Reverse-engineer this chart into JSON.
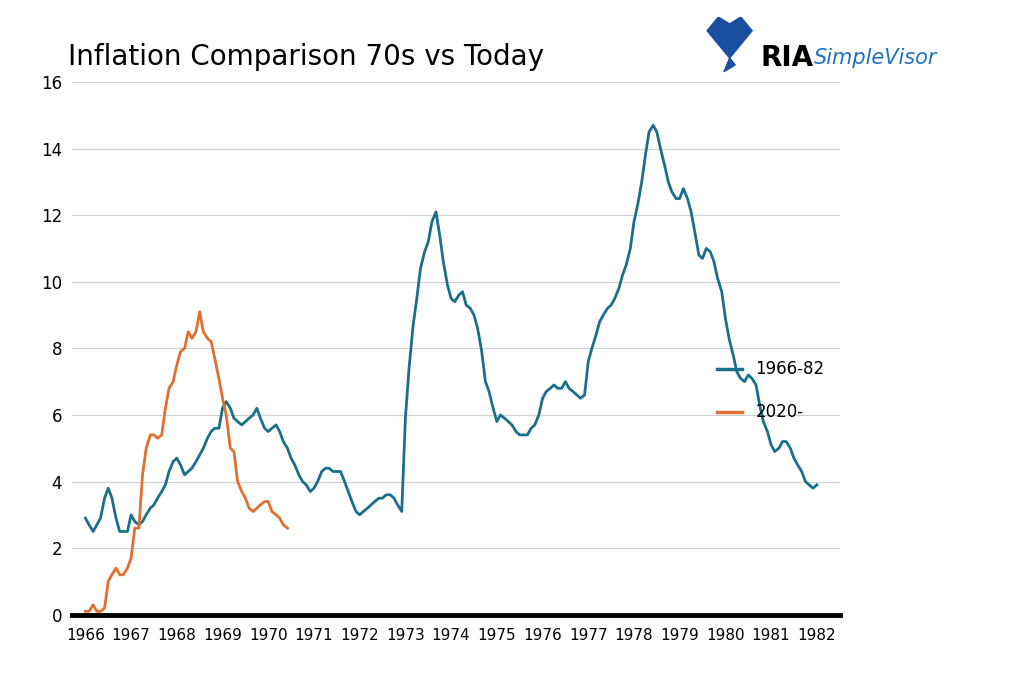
{
  "title": "Inflation Comparison 70s vs Today",
  "title_fontsize": 20,
  "line_1966_color": "#1a6f8a",
  "line_2020_color": "#e07030",
  "legend_1966": "1966-82",
  "legend_2020": "2020-",
  "ylim": [
    0,
    16
  ],
  "yticks": [
    0,
    2,
    4,
    6,
    8,
    10,
    12,
    14,
    16
  ],
  "xtick_labels": [
    "1966",
    "1967",
    "1968",
    "1969",
    "1970",
    "1971",
    "1972",
    "1973",
    "1974",
    "1975",
    "1976",
    "1977",
    "1978",
    "1979",
    "1980",
    "1981",
    "1982"
  ],
  "background_color": "#ffffff",
  "grid_color": "#d0d0d0",
  "line_width": 2.0,
  "data_1966": [
    [
      0.0,
      2.9
    ],
    [
      0.08,
      2.7
    ],
    [
      0.17,
      2.5
    ],
    [
      0.25,
      2.7
    ],
    [
      0.33,
      2.9
    ],
    [
      0.42,
      3.5
    ],
    [
      0.5,
      3.8
    ],
    [
      0.58,
      3.5
    ],
    [
      0.67,
      2.9
    ],
    [
      0.75,
      2.5
    ],
    [
      0.83,
      2.5
    ],
    [
      0.92,
      2.5
    ],
    [
      1.0,
      3.0
    ],
    [
      1.08,
      2.8
    ],
    [
      1.17,
      2.7
    ],
    [
      1.25,
      2.8
    ],
    [
      1.33,
      3.0
    ],
    [
      1.42,
      3.2
    ],
    [
      1.5,
      3.3
    ],
    [
      1.58,
      3.5
    ],
    [
      1.67,
      3.7
    ],
    [
      1.75,
      3.9
    ],
    [
      1.83,
      4.3
    ],
    [
      1.92,
      4.6
    ],
    [
      2.0,
      4.7
    ],
    [
      2.08,
      4.5
    ],
    [
      2.17,
      4.2
    ],
    [
      2.25,
      4.3
    ],
    [
      2.33,
      4.4
    ],
    [
      2.42,
      4.6
    ],
    [
      2.5,
      4.8
    ],
    [
      2.58,
      5.0
    ],
    [
      2.67,
      5.3
    ],
    [
      2.75,
      5.5
    ],
    [
      2.83,
      5.6
    ],
    [
      2.92,
      5.6
    ],
    [
      3.0,
      6.2
    ],
    [
      3.08,
      6.4
    ],
    [
      3.17,
      6.2
    ],
    [
      3.25,
      5.9
    ],
    [
      3.33,
      5.8
    ],
    [
      3.42,
      5.7
    ],
    [
      3.5,
      5.8
    ],
    [
      3.58,
      5.9
    ],
    [
      3.67,
      6.0
    ],
    [
      3.75,
      6.2
    ],
    [
      3.83,
      5.9
    ],
    [
      3.92,
      5.6
    ],
    [
      4.0,
      5.5
    ],
    [
      4.08,
      5.6
    ],
    [
      4.17,
      5.7
    ],
    [
      4.25,
      5.5
    ],
    [
      4.33,
      5.2
    ],
    [
      4.42,
      5.0
    ],
    [
      4.5,
      4.7
    ],
    [
      4.58,
      4.5
    ],
    [
      4.67,
      4.2
    ],
    [
      4.75,
      4.0
    ],
    [
      4.83,
      3.9
    ],
    [
      4.92,
      3.7
    ],
    [
      5.0,
      3.8
    ],
    [
      5.08,
      4.0
    ],
    [
      5.17,
      4.3
    ],
    [
      5.25,
      4.4
    ],
    [
      5.33,
      4.4
    ],
    [
      5.42,
      4.3
    ],
    [
      5.5,
      4.3
    ],
    [
      5.58,
      4.3
    ],
    [
      5.67,
      4.0
    ],
    [
      5.75,
      3.7
    ],
    [
      5.83,
      3.4
    ],
    [
      5.92,
      3.1
    ],
    [
      6.0,
      3.0
    ],
    [
      6.08,
      3.1
    ],
    [
      6.17,
      3.2
    ],
    [
      6.25,
      3.3
    ],
    [
      6.33,
      3.4
    ],
    [
      6.42,
      3.5
    ],
    [
      6.5,
      3.5
    ],
    [
      6.58,
      3.6
    ],
    [
      6.67,
      3.6
    ],
    [
      6.75,
      3.5
    ],
    [
      6.83,
      3.3
    ],
    [
      6.92,
      3.1
    ],
    [
      7.0,
      5.9
    ],
    [
      7.08,
      7.4
    ],
    [
      7.17,
      8.7
    ],
    [
      7.25,
      9.5
    ],
    [
      7.33,
      10.4
    ],
    [
      7.42,
      10.9
    ],
    [
      7.5,
      11.2
    ],
    [
      7.58,
      11.8
    ],
    [
      7.67,
      12.1
    ],
    [
      7.75,
      11.4
    ],
    [
      7.83,
      10.6
    ],
    [
      7.92,
      9.9
    ],
    [
      8.0,
      9.5
    ],
    [
      8.08,
      9.4
    ],
    [
      8.17,
      9.6
    ],
    [
      8.25,
      9.7
    ],
    [
      8.33,
      9.3
    ],
    [
      8.42,
      9.2
    ],
    [
      8.5,
      9.0
    ],
    [
      8.58,
      8.6
    ],
    [
      8.67,
      7.9
    ],
    [
      8.75,
      7.0
    ],
    [
      8.83,
      6.7
    ],
    [
      8.92,
      6.2
    ],
    [
      9.0,
      5.8
    ],
    [
      9.08,
      6.0
    ],
    [
      9.17,
      5.9
    ],
    [
      9.25,
      5.8
    ],
    [
      9.33,
      5.7
    ],
    [
      9.42,
      5.5
    ],
    [
      9.5,
      5.4
    ],
    [
      9.58,
      5.4
    ],
    [
      9.67,
      5.4
    ],
    [
      9.75,
      5.6
    ],
    [
      9.83,
      5.7
    ],
    [
      9.92,
      6.0
    ],
    [
      10.0,
      6.5
    ],
    [
      10.08,
      6.7
    ],
    [
      10.17,
      6.8
    ],
    [
      10.25,
      6.9
    ],
    [
      10.33,
      6.8
    ],
    [
      10.42,
      6.8
    ],
    [
      10.5,
      7.0
    ],
    [
      10.58,
      6.8
    ],
    [
      10.67,
      6.7
    ],
    [
      10.75,
      6.6
    ],
    [
      10.83,
      6.5
    ],
    [
      10.92,
      6.6
    ],
    [
      11.0,
      7.6
    ],
    [
      11.08,
      8.0
    ],
    [
      11.17,
      8.4
    ],
    [
      11.25,
      8.8
    ],
    [
      11.33,
      9.0
    ],
    [
      11.42,
      9.2
    ],
    [
      11.5,
      9.3
    ],
    [
      11.58,
      9.5
    ],
    [
      11.67,
      9.8
    ],
    [
      11.75,
      10.2
    ],
    [
      11.83,
      10.5
    ],
    [
      11.92,
      11.0
    ],
    [
      12.0,
      11.8
    ],
    [
      12.08,
      12.3
    ],
    [
      12.17,
      13.0
    ],
    [
      12.25,
      13.8
    ],
    [
      12.33,
      14.5
    ],
    [
      12.42,
      14.7
    ],
    [
      12.5,
      14.5
    ],
    [
      12.58,
      14.0
    ],
    [
      12.67,
      13.5
    ],
    [
      12.75,
      13.0
    ],
    [
      12.83,
      12.7
    ],
    [
      12.92,
      12.5
    ],
    [
      13.0,
      12.5
    ],
    [
      13.08,
      12.8
    ],
    [
      13.17,
      12.5
    ],
    [
      13.25,
      12.1
    ],
    [
      13.33,
      11.5
    ],
    [
      13.42,
      10.8
    ],
    [
      13.5,
      10.7
    ],
    [
      13.58,
      11.0
    ],
    [
      13.67,
      10.9
    ],
    [
      13.75,
      10.6
    ],
    [
      13.83,
      10.1
    ],
    [
      13.92,
      9.7
    ],
    [
      14.0,
      8.9
    ],
    [
      14.08,
      8.3
    ],
    [
      14.17,
      7.8
    ],
    [
      14.25,
      7.3
    ],
    [
      14.33,
      7.1
    ],
    [
      14.42,
      7.0
    ],
    [
      14.5,
      7.2
    ],
    [
      14.58,
      7.1
    ],
    [
      14.67,
      6.9
    ],
    [
      14.75,
      6.3
    ],
    [
      14.83,
      5.8
    ],
    [
      14.92,
      5.5
    ],
    [
      15.0,
      5.1
    ],
    [
      15.08,
      4.9
    ],
    [
      15.17,
      5.0
    ],
    [
      15.25,
      5.2
    ],
    [
      15.33,
      5.2
    ],
    [
      15.42,
      5.0
    ],
    [
      15.5,
      4.7
    ],
    [
      15.58,
      4.5
    ],
    [
      15.67,
      4.3
    ],
    [
      15.75,
      4.0
    ],
    [
      15.83,
      3.9
    ],
    [
      15.92,
      3.8
    ],
    [
      16.0,
      3.9
    ]
  ],
  "data_2020": [
    [
      0.0,
      0.1
    ],
    [
      0.08,
      0.1
    ],
    [
      0.17,
      0.3
    ],
    [
      0.25,
      0.1
    ],
    [
      0.33,
      0.1
    ],
    [
      0.42,
      0.2
    ],
    [
      0.5,
      1.0
    ],
    [
      0.58,
      1.2
    ],
    [
      0.67,
      1.4
    ],
    [
      0.75,
      1.2
    ],
    [
      0.83,
      1.2
    ],
    [
      0.92,
      1.4
    ],
    [
      1.0,
      1.7
    ],
    [
      1.08,
      2.6
    ],
    [
      1.17,
      2.6
    ],
    [
      1.25,
      4.2
    ],
    [
      1.33,
      5.0
    ],
    [
      1.42,
      5.4
    ],
    [
      1.5,
      5.4
    ],
    [
      1.58,
      5.3
    ],
    [
      1.67,
      5.4
    ],
    [
      1.75,
      6.2
    ],
    [
      1.83,
      6.8
    ],
    [
      1.92,
      7.0
    ],
    [
      2.0,
      7.5
    ],
    [
      2.08,
      7.9
    ],
    [
      2.17,
      8.0
    ],
    [
      2.25,
      8.5
    ],
    [
      2.33,
      8.3
    ],
    [
      2.42,
      8.5
    ],
    [
      2.5,
      9.1
    ],
    [
      2.58,
      8.5
    ],
    [
      2.67,
      8.3
    ],
    [
      2.75,
      8.2
    ],
    [
      2.83,
      7.7
    ],
    [
      2.92,
      7.1
    ],
    [
      3.0,
      6.5
    ],
    [
      3.08,
      6.0
    ],
    [
      3.17,
      5.0
    ],
    [
      3.25,
      4.9
    ],
    [
      3.33,
      4.0
    ],
    [
      3.42,
      3.7
    ],
    [
      3.5,
      3.5
    ],
    [
      3.58,
      3.2
    ],
    [
      3.67,
      3.1
    ],
    [
      3.75,
      3.2
    ],
    [
      3.83,
      3.3
    ],
    [
      3.92,
      3.4
    ],
    [
      4.0,
      3.4
    ],
    [
      4.08,
      3.1
    ],
    [
      4.17,
      3.0
    ],
    [
      4.25,
      2.9
    ],
    [
      4.33,
      2.7
    ],
    [
      4.42,
      2.6
    ]
  ]
}
